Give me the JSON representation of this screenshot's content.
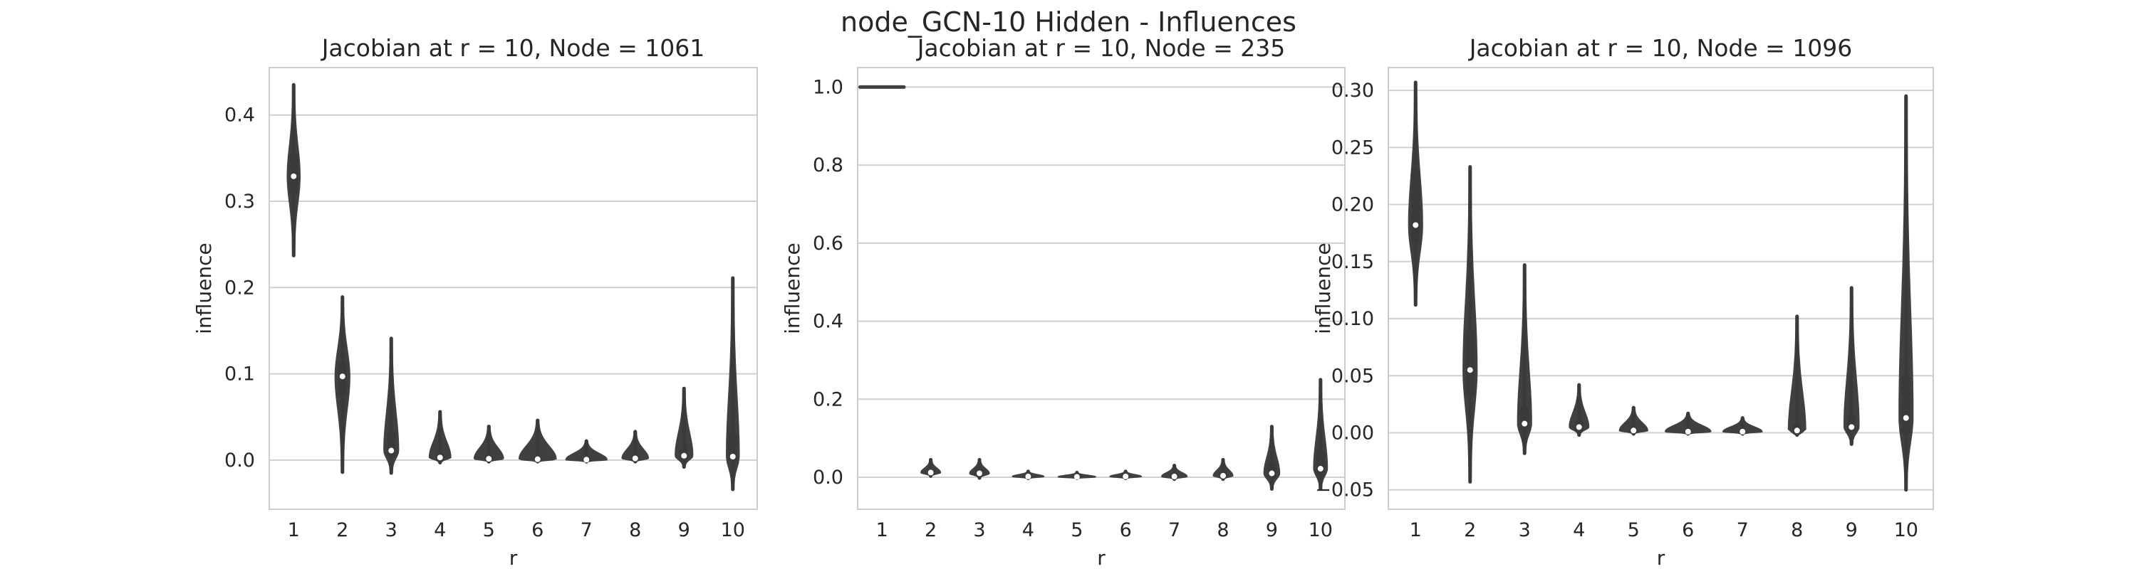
{
  "figure": {
    "suptitle": "node_GCN-10 Hidden - Influences",
    "colors": {
      "violin": "#404040",
      "box": "#3a3a3a",
      "median": "#ffffff",
      "grid": "#d0d0d0",
      "spine": "#cccccc",
      "text": "#262626"
    }
  },
  "chart_data": [
    {
      "type": "violin",
      "title": "Jacobian at r = 10, Node = 1061",
      "xlabel": "r",
      "ylabel": "influence",
      "categories": [
        "1",
        "2",
        "3",
        "4",
        "5",
        "6",
        "7",
        "8",
        "9",
        "10"
      ],
      "ylim": [
        -0.057,
        0.455
      ],
      "yticks": [
        0.0,
        0.1,
        0.2,
        0.3,
        0.4
      ],
      "ytick_labels": [
        "0.0",
        "0.1",
        "0.2",
        "0.3",
        "0.4"
      ],
      "grid": true,
      "distributions": [
        {
          "min": 0.237,
          "q1": 0.31,
          "median": 0.329,
          "q3": 0.353,
          "max": 0.435,
          "width": 0.11
        },
        {
          "min": -0.014,
          "q1": 0.075,
          "median": 0.097,
          "q3": 0.112,
          "max": 0.189,
          "width": 0.13
        },
        {
          "min": -0.015,
          "q1": 0.005,
          "median": 0.011,
          "q3": 0.032,
          "max": 0.141,
          "width": 0.13
        },
        {
          "min": -0.003,
          "q1": 0.001,
          "median": 0.003,
          "q3": 0.007,
          "max": 0.056,
          "width": 0.2
        },
        {
          "min": -0.002,
          "q1": 0.0005,
          "median": 0.0015,
          "q3": 0.003,
          "max": 0.039,
          "width": 0.28
        },
        {
          "min": -0.002,
          "q1": 0.0,
          "median": 0.001,
          "q3": 0.002,
          "max": 0.046,
          "width": 0.36
        },
        {
          "min": -0.002,
          "q1": 0.0,
          "median": 0.0005,
          "q3": 0.002,
          "max": 0.022,
          "width": 0.4
        },
        {
          "min": -0.002,
          "q1": 0.0005,
          "median": 0.002,
          "q3": 0.004,
          "max": 0.033,
          "width": 0.25
        },
        {
          "min": -0.008,
          "q1": 0.002,
          "median": 0.005,
          "q3": 0.012,
          "max": 0.083,
          "width": 0.16
        },
        {
          "min": -0.034,
          "q1": 0.001,
          "median": 0.004,
          "q3": 0.03,
          "max": 0.211,
          "width": 0.11
        }
      ]
    },
    {
      "type": "violin",
      "title": "Jacobian at r = 10, Node = 235",
      "xlabel": "r",
      "ylabel": "influence",
      "categories": [
        "1",
        "2",
        "3",
        "4",
        "5",
        "6",
        "7",
        "8",
        "9",
        "10"
      ],
      "ylim": [
        -0.082,
        1.05
      ],
      "yticks": [
        0.0,
        0.2,
        0.4,
        0.6,
        0.8,
        1.0
      ],
      "ytick_labels": [
        "0.0",
        "0.2",
        "0.4",
        "0.6",
        "0.8",
        "1.0"
      ],
      "grid": true,
      "distributions": [
        {
          "min": 1.0,
          "q1": 1.0,
          "median": 1.0,
          "q3": 1.0,
          "max": 1.0,
          "flat": true,
          "half_span": 0.45
        },
        {
          "min": 0.003,
          "q1": 0.008,
          "median": 0.012,
          "q3": 0.018,
          "max": 0.045,
          "width": 0.18
        },
        {
          "min": -0.002,
          "q1": 0.005,
          "median": 0.01,
          "q3": 0.018,
          "max": 0.045,
          "width": 0.18
        },
        {
          "min": -0.003,
          "q1": 0.0,
          "median": 0.002,
          "q3": 0.004,
          "max": 0.015,
          "width": 0.3
        },
        {
          "min": -0.003,
          "q1": 0.0,
          "median": 0.001,
          "q3": 0.003,
          "max": 0.012,
          "width": 0.36
        },
        {
          "min": -0.003,
          "q1": 0.0,
          "median": 0.002,
          "q3": 0.004,
          "max": 0.015,
          "width": 0.3
        },
        {
          "min": -0.005,
          "q1": 0.0,
          "median": 0.002,
          "q3": 0.006,
          "max": 0.03,
          "width": 0.24
        },
        {
          "min": -0.005,
          "q1": 0.0,
          "median": 0.004,
          "q3": 0.012,
          "max": 0.045,
          "width": 0.18
        },
        {
          "min": -0.03,
          "q1": 0.0,
          "median": 0.01,
          "q3": 0.035,
          "max": 0.13,
          "width": 0.14
        },
        {
          "min": -0.03,
          "q1": 0.005,
          "median": 0.022,
          "q3": 0.065,
          "max": 0.25,
          "width": 0.12
        }
      ]
    },
    {
      "type": "violin",
      "title": "Jacobian at r = 10, Node = 1096",
      "xlabel": "r",
      "ylabel": "influence",
      "categories": [
        "1",
        "2",
        "3",
        "4",
        "5",
        "6",
        "7",
        "8",
        "9",
        "10"
      ],
      "ylim": [
        -0.067,
        0.32
      ],
      "yticks": [
        -0.05,
        0.0,
        0.05,
        0.1,
        0.15,
        0.2,
        0.25,
        0.3
      ],
      "ytick_labels": [
        "−0.05",
        "0.00",
        "0.05",
        "0.10",
        "0.15",
        "0.20",
        "0.25",
        "0.30"
      ],
      "grid": true,
      "distributions": [
        {
          "min": 0.112,
          "q1": 0.168,
          "median": 0.182,
          "q3": 0.23,
          "max": 0.307,
          "width": 0.11
        },
        {
          "min": -0.043,
          "q1": 0.033,
          "median": 0.055,
          "q3": 0.088,
          "max": 0.233,
          "width": 0.11
        },
        {
          "min": -0.018,
          "q1": 0.003,
          "median": 0.008,
          "q3": 0.022,
          "max": 0.147,
          "width": 0.11
        },
        {
          "min": -0.002,
          "q1": 0.002,
          "median": 0.005,
          "q3": 0.01,
          "max": 0.042,
          "width": 0.16
        },
        {
          "min": -0.001,
          "q1": 0.001,
          "median": 0.002,
          "q3": 0.004,
          "max": 0.022,
          "width": 0.24
        },
        {
          "min": -0.001,
          "q1": 0.0,
          "median": 0.001,
          "q3": 0.002,
          "max": 0.017,
          "width": 0.4
        },
        {
          "min": -0.001,
          "q1": 0.0,
          "median": 0.001,
          "q3": 0.002,
          "max": 0.013,
          "width": 0.34
        },
        {
          "min": -0.002,
          "q1": 0.0,
          "median": 0.002,
          "q3": 0.006,
          "max": 0.102,
          "width": 0.14
        },
        {
          "min": -0.01,
          "q1": 0.001,
          "median": 0.005,
          "q3": 0.015,
          "max": 0.127,
          "width": 0.12
        },
        {
          "min": -0.05,
          "q1": 0.0,
          "median": 0.013,
          "q3": 0.048,
          "max": 0.295,
          "width": 0.11
        }
      ]
    }
  ]
}
